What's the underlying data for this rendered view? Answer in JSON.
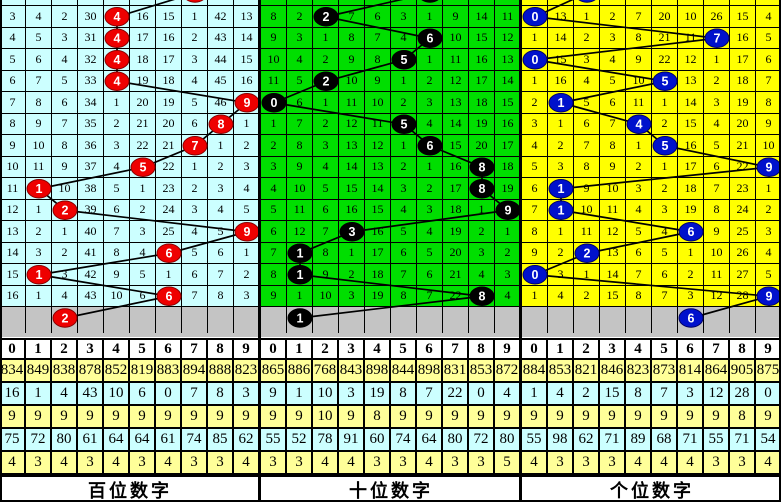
{
  "colors": {
    "grid_line": "#000000",
    "gray_band": "#C4C4C4",
    "stats_row_yellow": "#FFFF99",
    "stats_row_cyan": "#CCFFFF",
    "header_bg": "#FFFFFF"
  },
  "chart_data": [
    {
      "type": "table",
      "title": "百位数字",
      "colors": {
        "bg": "#CCFFFF",
        "circle": "#EE0000",
        "circle_edge": "#880000"
      },
      "column_digits": [
        "0",
        "1",
        "2",
        "3",
        "4",
        "5",
        "6",
        "7",
        "8",
        "9"
      ],
      "grid_rows": [
        [
          "3",
          "4",
          "2",
          "30",
          "4",
          "16",
          "15",
          "1",
          "42",
          "13"
        ],
        [
          "4",
          "5",
          "3",
          "31",
          "4",
          "17",
          "16",
          "2",
          "43",
          "14"
        ],
        [
          "5",
          "6",
          "4",
          "32",
          "4",
          "18",
          "17",
          "3",
          "44",
          "15"
        ],
        [
          "6",
          "7",
          "5",
          "33",
          "4",
          "19",
          "18",
          "4",
          "45",
          "16"
        ],
        [
          "7",
          "8",
          "6",
          "34",
          "1",
          "20",
          "19",
          "5",
          "46",
          "9"
        ],
        [
          "8",
          "9",
          "7",
          "35",
          "2",
          "21",
          "20",
          "6",
          "8",
          "1"
        ],
        [
          "9",
          "10",
          "8",
          "36",
          "3",
          "22",
          "21",
          "7",
          "1",
          "2"
        ],
        [
          "10",
          "11",
          "9",
          "37",
          "4",
          "5",
          "22",
          "1",
          "2",
          "3"
        ],
        [
          "11",
          "1",
          "10",
          "38",
          "5",
          "1",
          "23",
          "2",
          "3",
          "4"
        ],
        [
          "12",
          "1",
          "2",
          "39",
          "6",
          "2",
          "24",
          "3",
          "4",
          "5"
        ],
        [
          "13",
          "2",
          "1",
          "40",
          "7",
          "3",
          "25",
          "4",
          "5",
          "9"
        ],
        [
          "14",
          "3",
          "2",
          "41",
          "8",
          "4",
          "6",
          "5",
          "6",
          "1"
        ],
        [
          "15",
          "1",
          "3",
          "42",
          "9",
          "5",
          "1",
          "6",
          "7",
          "2"
        ],
        [
          "16",
          "1",
          "4",
          "43",
          "10",
          "6",
          "6",
          "7",
          "8",
          "3"
        ]
      ],
      "circled_cols": [
        4,
        4,
        4,
        4,
        9,
        8,
        7,
        5,
        1,
        2,
        9,
        6,
        1,
        6
      ],
      "top_partial_circle_col": 7,
      "pending_row_circle_col": 2,
      "stats_rows": [
        [
          "834",
          "849",
          "838",
          "878",
          "852",
          "819",
          "883",
          "894",
          "888",
          "823"
        ],
        [
          "16",
          "1",
          "4",
          "43",
          "10",
          "6",
          "0",
          "7",
          "8",
          "3"
        ],
        [
          "9",
          "9",
          "9",
          "9",
          "9",
          "9",
          "9",
          "9",
          "9",
          "9"
        ],
        [
          "75",
          "72",
          "80",
          "61",
          "64",
          "64",
          "61",
          "74",
          "85",
          "62"
        ],
        [
          "4",
          "3",
          "4",
          "3",
          "4",
          "3",
          "4",
          "3",
          "3",
          "4"
        ]
      ]
    },
    {
      "type": "table",
      "title": "十位数字",
      "colors": {
        "bg": "#00DE00",
        "circle": "#000000",
        "circle_edge": "#000000"
      },
      "column_digits": [
        "0",
        "1",
        "2",
        "3",
        "4",
        "5",
        "6",
        "7",
        "8",
        "9"
      ],
      "grid_rows": [
        [
          "8",
          "2",
          "2",
          "7",
          "6",
          "3",
          "1",
          "9",
          "14",
          "11"
        ],
        [
          "9",
          "3",
          "1",
          "8",
          "7",
          "4",
          "6",
          "10",
          "15",
          "12"
        ],
        [
          "10",
          "4",
          "2",
          "9",
          "8",
          "5",
          "1",
          "11",
          "16",
          "13"
        ],
        [
          "11",
          "5",
          "2",
          "10",
          "9",
          "1",
          "2",
          "12",
          "17",
          "14"
        ],
        [
          "0",
          "6",
          "1",
          "11",
          "10",
          "2",
          "3",
          "13",
          "18",
          "15"
        ],
        [
          "1",
          "7",
          "2",
          "12",
          "11",
          "5",
          "4",
          "14",
          "19",
          "16"
        ],
        [
          "2",
          "8",
          "3",
          "13",
          "12",
          "1",
          "6",
          "15",
          "20",
          "17"
        ],
        [
          "3",
          "9",
          "4",
          "14",
          "13",
          "2",
          "1",
          "16",
          "8",
          "18"
        ],
        [
          "4",
          "10",
          "5",
          "15",
          "14",
          "3",
          "2",
          "17",
          "8",
          "19"
        ],
        [
          "5",
          "11",
          "6",
          "16",
          "15",
          "4",
          "3",
          "18",
          "1",
          "9"
        ],
        [
          "6",
          "12",
          "7",
          "3",
          "16",
          "5",
          "4",
          "19",
          "2",
          "1"
        ],
        [
          "7",
          "1",
          "8",
          "1",
          "17",
          "6",
          "5",
          "20",
          "3",
          "2"
        ],
        [
          "8",
          "1",
          "9",
          "2",
          "18",
          "7",
          "6",
          "21",
          "4",
          "3"
        ],
        [
          "9",
          "1",
          "10",
          "3",
          "19",
          "8",
          "7",
          "22",
          "8",
          "4"
        ]
      ],
      "circled_cols": [
        2,
        6,
        5,
        2,
        0,
        5,
        6,
        8,
        8,
        9,
        3,
        1,
        1,
        8
      ],
      "top_partial_circle_col": 6,
      "pending_row_circle_col": 1,
      "stats_rows": [
        [
          "865",
          "886",
          "768",
          "843",
          "898",
          "844",
          "898",
          "831",
          "853",
          "872"
        ],
        [
          "9",
          "1",
          "10",
          "3",
          "19",
          "8",
          "7",
          "22",
          "0",
          "4"
        ],
        [
          "9",
          "9",
          "10",
          "9",
          "8",
          "9",
          "9",
          "9",
          "9",
          "9"
        ],
        [
          "55",
          "52",
          "78",
          "91",
          "60",
          "74",
          "64",
          "80",
          "72",
          "80"
        ],
        [
          "3",
          "3",
          "4",
          "4",
          "3",
          "3",
          "4",
          "3",
          "3",
          "5"
        ]
      ]
    },
    {
      "type": "table",
      "title": "个位数字",
      "colors": {
        "bg": "#FFFF00",
        "circle": "#0011CC",
        "circle_edge": "#000066"
      },
      "column_digits": [
        "0",
        "1",
        "2",
        "3",
        "4",
        "5",
        "6",
        "7",
        "8",
        "9"
      ],
      "grid_rows": [
        [
          "0",
          "13",
          "1",
          "2",
          "7",
          "20",
          "10",
          "26",
          "15",
          "4"
        ],
        [
          "1",
          "14",
          "2",
          "3",
          "8",
          "21",
          "11",
          "7",
          "16",
          "5"
        ],
        [
          "0",
          "15",
          "3",
          "4",
          "9",
          "22",
          "12",
          "1",
          "17",
          "6"
        ],
        [
          "1",
          "16",
          "4",
          "5",
          "10",
          "5",
          "13",
          "2",
          "18",
          "7"
        ],
        [
          "2",
          "1",
          "5",
          "6",
          "11",
          "1",
          "14",
          "3",
          "19",
          "8"
        ],
        [
          "3",
          "1",
          "6",
          "7",
          "4",
          "2",
          "15",
          "4",
          "20",
          "9"
        ],
        [
          "4",
          "2",
          "7",
          "8",
          "1",
          "5",
          "16",
          "5",
          "21",
          "10"
        ],
        [
          "5",
          "3",
          "8",
          "9",
          "2",
          "1",
          "17",
          "6",
          "22",
          "9"
        ],
        [
          "6",
          "1",
          "9",
          "10",
          "3",
          "2",
          "18",
          "7",
          "23",
          "1"
        ],
        [
          "7",
          "1",
          "10",
          "11",
          "4",
          "3",
          "19",
          "8",
          "24",
          "2"
        ],
        [
          "8",
          "1",
          "11",
          "12",
          "5",
          "4",
          "6",
          "9",
          "25",
          "3"
        ],
        [
          "9",
          "2",
          "2",
          "13",
          "6",
          "5",
          "1",
          "10",
          "26",
          "4"
        ],
        [
          "0",
          "3",
          "1",
          "14",
          "7",
          "6",
          "2",
          "11",
          "27",
          "5"
        ],
        [
          "1",
          "4",
          "2",
          "15",
          "8",
          "7",
          "3",
          "12",
          "28",
          "9"
        ]
      ],
      "circled_cols": [
        0,
        7,
        0,
        5,
        1,
        4,
        5,
        9,
        1,
        1,
        6,
        2,
        0,
        9
      ],
      "top_partial_circle_col": 2,
      "pending_row_circle_col": 6,
      "stats_rows": [
        [
          "884",
          "853",
          "821",
          "846",
          "823",
          "873",
          "814",
          "864",
          "905",
          "875"
        ],
        [
          "1",
          "4",
          "2",
          "15",
          "8",
          "7",
          "3",
          "12",
          "28",
          "0"
        ],
        [
          "9",
          "9",
          "9",
          "9",
          "9",
          "9",
          "9",
          "9",
          "8",
          "9"
        ],
        [
          "55",
          "98",
          "62",
          "71",
          "89",
          "68",
          "71",
          "55",
          "71",
          "54"
        ],
        [
          "4",
          "3",
          "3",
          "3",
          "4",
          "4",
          "4",
          "3",
          "3",
          "4"
        ]
      ]
    }
  ]
}
